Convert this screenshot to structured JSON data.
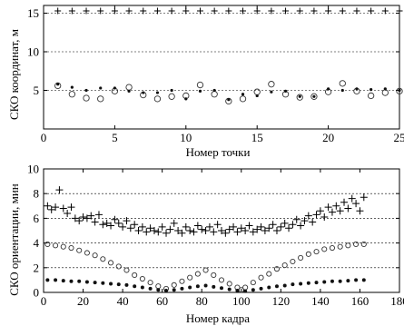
{
  "chart_data": [
    {
      "type": "scatter",
      "xlabel": "Номер точки",
      "ylabel": "СКО координат, м",
      "xlim": [
        0,
        25
      ],
      "ylim": [
        0,
        16
      ],
      "xticks": [
        0,
        5,
        10,
        15,
        20,
        25
      ],
      "yticks": [
        5,
        10,
        15
      ],
      "grid": "horizontal-dashed",
      "series": [
        {
          "marker": "plus",
          "values": [
            {
              "x": 1,
              "y": 15.3
            },
            {
              "x": 2,
              "y": 15.3
            },
            {
              "x": 3,
              "y": 15.3
            },
            {
              "x": 4,
              "y": 15.3
            },
            {
              "x": 5,
              "y": 15.3
            },
            {
              "x": 6,
              "y": 15.3
            },
            {
              "x": 7,
              "y": 15.3
            },
            {
              "x": 8,
              "y": 15.3
            },
            {
              "x": 9,
              "y": 15.3
            },
            {
              "x": 10,
              "y": 15.3
            },
            {
              "x": 11,
              "y": 15.3
            },
            {
              "x": 12,
              "y": 15.3
            },
            {
              "x": 13,
              "y": 15.3
            },
            {
              "x": 14,
              "y": 15.3
            },
            {
              "x": 15,
              "y": 15.3
            },
            {
              "x": 16,
              "y": 15.3
            },
            {
              "x": 17,
              "y": 15.3
            },
            {
              "x": 18,
              "y": 15.3
            },
            {
              "x": 19,
              "y": 15.3
            },
            {
              "x": 20,
              "y": 15.3
            },
            {
              "x": 21,
              "y": 15.3
            },
            {
              "x": 22,
              "y": 15.3
            },
            {
              "x": 23,
              "y": 15.3
            },
            {
              "x": 24,
              "y": 15.3
            },
            {
              "x": 25,
              "y": 15.3
            }
          ]
        },
        {
          "marker": "circle",
          "values": [
            {
              "x": 1,
              "y": 5.6
            },
            {
              "x": 2,
              "y": 4.5
            },
            {
              "x": 3,
              "y": 4.0
            },
            {
              "x": 4,
              "y": 3.9
            },
            {
              "x": 5,
              "y": 4.9
            },
            {
              "x": 6,
              "y": 5.4
            },
            {
              "x": 7,
              "y": 4.4
            },
            {
              "x": 8,
              "y": 3.9
            },
            {
              "x": 9,
              "y": 4.2
            },
            {
              "x": 10,
              "y": 4.3
            },
            {
              "x": 11,
              "y": 5.7
            },
            {
              "x": 12,
              "y": 4.5
            },
            {
              "x": 13,
              "y": 3.6
            },
            {
              "x": 14,
              "y": 3.9
            },
            {
              "x": 15,
              "y": 4.8
            },
            {
              "x": 16,
              "y": 5.8
            },
            {
              "x": 17,
              "y": 4.5
            },
            {
              "x": 18,
              "y": 4.1
            },
            {
              "x": 19,
              "y": 4.2
            },
            {
              "x": 20,
              "y": 4.8
            },
            {
              "x": 21,
              "y": 5.9
            },
            {
              "x": 22,
              "y": 4.9
            },
            {
              "x": 23,
              "y": 4.3
            },
            {
              "x": 24,
              "y": 4.7
            },
            {
              "x": 25,
              "y": 4.9
            }
          ]
        },
        {
          "marker": "dot",
          "values": [
            {
              "x": 1,
              "y": 5.8
            },
            {
              "x": 2,
              "y": 5.4
            },
            {
              "x": 3,
              "y": 5.0
            },
            {
              "x": 4,
              "y": 5.3
            },
            {
              "x": 5,
              "y": 5.3
            },
            {
              "x": 6,
              "y": 4.9
            },
            {
              "x": 7,
              "y": 4.7
            },
            {
              "x": 8,
              "y": 4.7
            },
            {
              "x": 9,
              "y": 5.0
            },
            {
              "x": 10,
              "y": 3.9
            },
            {
              "x": 11,
              "y": 4.9
            },
            {
              "x": 12,
              "y": 5.0
            },
            {
              "x": 13,
              "y": 3.8
            },
            {
              "x": 14,
              "y": 4.5
            },
            {
              "x": 15,
              "y": 4.3
            },
            {
              "x": 16,
              "y": 4.8
            },
            {
              "x": 17,
              "y": 4.9
            },
            {
              "x": 18,
              "y": 4.2
            },
            {
              "x": 19,
              "y": 4.2
            },
            {
              "x": 20,
              "y": 5.2
            },
            {
              "x": 21,
              "y": 5.0
            },
            {
              "x": 22,
              "y": 5.2
            },
            {
              "x": 23,
              "y": 5.1
            },
            {
              "x": 24,
              "y": 5.2
            },
            {
              "x": 25,
              "y": 5.0
            }
          ]
        }
      ]
    },
    {
      "type": "scatter",
      "xlabel": "Номер кадра",
      "ylabel": "СКО ориентации, мин",
      "xlim": [
        0,
        180
      ],
      "ylim": [
        0,
        10
      ],
      "xticks": [
        0,
        20,
        40,
        60,
        80,
        100,
        120,
        140,
        160,
        180
      ],
      "yticks": [
        0,
        2,
        4,
        6,
        8,
        10
      ],
      "grid": "horizontal-dashed",
      "series": [
        {
          "marker": "plus",
          "values": [
            {
              "x": 2,
              "y": 7.0
            },
            {
              "x": 4,
              "y": 6.7
            },
            {
              "x": 6,
              "y": 6.9
            },
            {
              "x": 8,
              "y": 8.3
            },
            {
              "x": 10,
              "y": 6.8
            },
            {
              "x": 12,
              "y": 6.4
            },
            {
              "x": 14,
              "y": 6.9
            },
            {
              "x": 16,
              "y": 6.0
            },
            {
              "x": 18,
              "y": 5.8
            },
            {
              "x": 20,
              "y": 6.1
            },
            {
              "x": 22,
              "y": 6.0
            },
            {
              "x": 24,
              "y": 6.2
            },
            {
              "x": 26,
              "y": 5.7
            },
            {
              "x": 28,
              "y": 6.3
            },
            {
              "x": 30,
              "y": 5.5
            },
            {
              "x": 32,
              "y": 5.6
            },
            {
              "x": 34,
              "y": 5.4
            },
            {
              "x": 36,
              "y": 5.9
            },
            {
              "x": 38,
              "y": 5.6
            },
            {
              "x": 40,
              "y": 5.3
            },
            {
              "x": 42,
              "y": 5.8
            },
            {
              "x": 44,
              "y": 5.2
            },
            {
              "x": 46,
              "y": 5.5
            },
            {
              "x": 48,
              "y": 5.0
            },
            {
              "x": 50,
              "y": 5.3
            },
            {
              "x": 52,
              "y": 4.9
            },
            {
              "x": 54,
              "y": 5.2
            },
            {
              "x": 56,
              "y": 5.0
            },
            {
              "x": 58,
              "y": 4.9
            },
            {
              "x": 60,
              "y": 5.3
            },
            {
              "x": 62,
              "y": 4.8
            },
            {
              "x": 64,
              "y": 5.1
            },
            {
              "x": 66,
              "y": 5.6
            },
            {
              "x": 68,
              "y": 5.0
            },
            {
              "x": 70,
              "y": 4.8
            },
            {
              "x": 72,
              "y": 5.3
            },
            {
              "x": 74,
              "y": 5.0
            },
            {
              "x": 76,
              "y": 4.9
            },
            {
              "x": 78,
              "y": 5.4
            },
            {
              "x": 80,
              "y": 5.1
            },
            {
              "x": 82,
              "y": 5.0
            },
            {
              "x": 84,
              "y": 5.3
            },
            {
              "x": 86,
              "y": 4.9
            },
            {
              "x": 88,
              "y": 5.5
            },
            {
              "x": 90,
              "y": 5.0
            },
            {
              "x": 92,
              "y": 4.8
            },
            {
              "x": 94,
              "y": 5.1
            },
            {
              "x": 96,
              "y": 5.3
            },
            {
              "x": 98,
              "y": 4.9
            },
            {
              "x": 100,
              "y": 5.2
            },
            {
              "x": 102,
              "y": 5.0
            },
            {
              "x": 104,
              "y": 5.4
            },
            {
              "x": 106,
              "y": 4.9
            },
            {
              "x": 108,
              "y": 5.1
            },
            {
              "x": 110,
              "y": 5.3
            },
            {
              "x": 112,
              "y": 5.0
            },
            {
              "x": 114,
              "y": 5.2
            },
            {
              "x": 116,
              "y": 5.5
            },
            {
              "x": 118,
              "y": 5.0
            },
            {
              "x": 120,
              "y": 5.3
            },
            {
              "x": 122,
              "y": 5.6
            },
            {
              "x": 124,
              "y": 5.2
            },
            {
              "x": 126,
              "y": 5.5
            },
            {
              "x": 128,
              "y": 5.9
            },
            {
              "x": 130,
              "y": 5.4
            },
            {
              "x": 132,
              "y": 5.8
            },
            {
              "x": 134,
              "y": 6.2
            },
            {
              "x": 136,
              "y": 5.7
            },
            {
              "x": 138,
              "y": 6.3
            },
            {
              "x": 140,
              "y": 6.6
            },
            {
              "x": 142,
              "y": 6.1
            },
            {
              "x": 144,
              "y": 6.9
            },
            {
              "x": 146,
              "y": 6.5
            },
            {
              "x": 148,
              "y": 7.0
            },
            {
              "x": 150,
              "y": 6.6
            },
            {
              "x": 152,
              "y": 7.3
            },
            {
              "x": 154,
              "y": 6.8
            },
            {
              "x": 156,
              "y": 7.6
            },
            {
              "x": 158,
              "y": 7.2
            },
            {
              "x": 160,
              "y": 6.6
            },
            {
              "x": 162,
              "y": 7.7
            }
          ]
        },
        {
          "marker": "circle",
          "values": [
            {
              "x": 2,
              "y": 3.9
            },
            {
              "x": 6,
              "y": 3.8
            },
            {
              "x": 10,
              "y": 3.7
            },
            {
              "x": 14,
              "y": 3.6
            },
            {
              "x": 18,
              "y": 3.4
            },
            {
              "x": 22,
              "y": 3.2
            },
            {
              "x": 26,
              "y": 3.0
            },
            {
              "x": 30,
              "y": 2.7
            },
            {
              "x": 34,
              "y": 2.4
            },
            {
              "x": 38,
              "y": 2.1
            },
            {
              "x": 42,
              "y": 1.8
            },
            {
              "x": 46,
              "y": 1.4
            },
            {
              "x": 50,
              "y": 1.1
            },
            {
              "x": 54,
              "y": 0.8
            },
            {
              "x": 58,
              "y": 0.5
            },
            {
              "x": 62,
              "y": 0.3
            },
            {
              "x": 66,
              "y": 0.6
            },
            {
              "x": 70,
              "y": 0.9
            },
            {
              "x": 74,
              "y": 1.2
            },
            {
              "x": 78,
              "y": 1.5
            },
            {
              "x": 82,
              "y": 1.8
            },
            {
              "x": 86,
              "y": 1.4
            },
            {
              "x": 90,
              "y": 1.0
            },
            {
              "x": 94,
              "y": 0.7
            },
            {
              "x": 98,
              "y": 0.4
            },
            {
              "x": 100,
              "y": 0.2
            },
            {
              "x": 102,
              "y": 0.4
            },
            {
              "x": 106,
              "y": 0.8
            },
            {
              "x": 110,
              "y": 1.2
            },
            {
              "x": 114,
              "y": 1.5
            },
            {
              "x": 118,
              "y": 1.9
            },
            {
              "x": 122,
              "y": 2.2
            },
            {
              "x": 126,
              "y": 2.5
            },
            {
              "x": 130,
              "y": 2.8
            },
            {
              "x": 134,
              "y": 3.1
            },
            {
              "x": 138,
              "y": 3.3
            },
            {
              "x": 142,
              "y": 3.5
            },
            {
              "x": 146,
              "y": 3.6
            },
            {
              "x": 150,
              "y": 3.7
            },
            {
              "x": 154,
              "y": 3.8
            },
            {
              "x": 158,
              "y": 3.9
            },
            {
              "x": 162,
              "y": 3.9
            }
          ]
        },
        {
          "marker": "dot",
          "values": [
            {
              "x": 2,
              "y": 1.0
            },
            {
              "x": 6,
              "y": 1.0
            },
            {
              "x": 10,
              "y": 0.95
            },
            {
              "x": 14,
              "y": 0.9
            },
            {
              "x": 18,
              "y": 0.9
            },
            {
              "x": 22,
              "y": 0.85
            },
            {
              "x": 26,
              "y": 0.8
            },
            {
              "x": 30,
              "y": 0.75
            },
            {
              "x": 34,
              "y": 0.7
            },
            {
              "x": 38,
              "y": 0.65
            },
            {
              "x": 42,
              "y": 0.6
            },
            {
              "x": 46,
              "y": 0.5
            },
            {
              "x": 50,
              "y": 0.4
            },
            {
              "x": 54,
              "y": 0.3
            },
            {
              "x": 58,
              "y": 0.2
            },
            {
              "x": 62,
              "y": 0.15
            },
            {
              "x": 66,
              "y": 0.2
            },
            {
              "x": 70,
              "y": 0.3
            },
            {
              "x": 74,
              "y": 0.4
            },
            {
              "x": 78,
              "y": 0.5
            },
            {
              "x": 82,
              "y": 0.55
            },
            {
              "x": 86,
              "y": 0.45
            },
            {
              "x": 90,
              "y": 0.35
            },
            {
              "x": 94,
              "y": 0.25
            },
            {
              "x": 98,
              "y": 0.15
            },
            {
              "x": 102,
              "y": 0.1
            },
            {
              "x": 106,
              "y": 0.2
            },
            {
              "x": 110,
              "y": 0.3
            },
            {
              "x": 114,
              "y": 0.4
            },
            {
              "x": 118,
              "y": 0.5
            },
            {
              "x": 122,
              "y": 0.55
            },
            {
              "x": 126,
              "y": 0.65
            },
            {
              "x": 130,
              "y": 0.7
            },
            {
              "x": 134,
              "y": 0.75
            },
            {
              "x": 138,
              "y": 0.8
            },
            {
              "x": 142,
              "y": 0.85
            },
            {
              "x": 146,
              "y": 0.9
            },
            {
              "x": 150,
              "y": 0.9
            },
            {
              "x": 154,
              "y": 0.95
            },
            {
              "x": 158,
              "y": 1.0
            },
            {
              "x": 162,
              "y": 1.0
            }
          ]
        }
      ]
    }
  ]
}
